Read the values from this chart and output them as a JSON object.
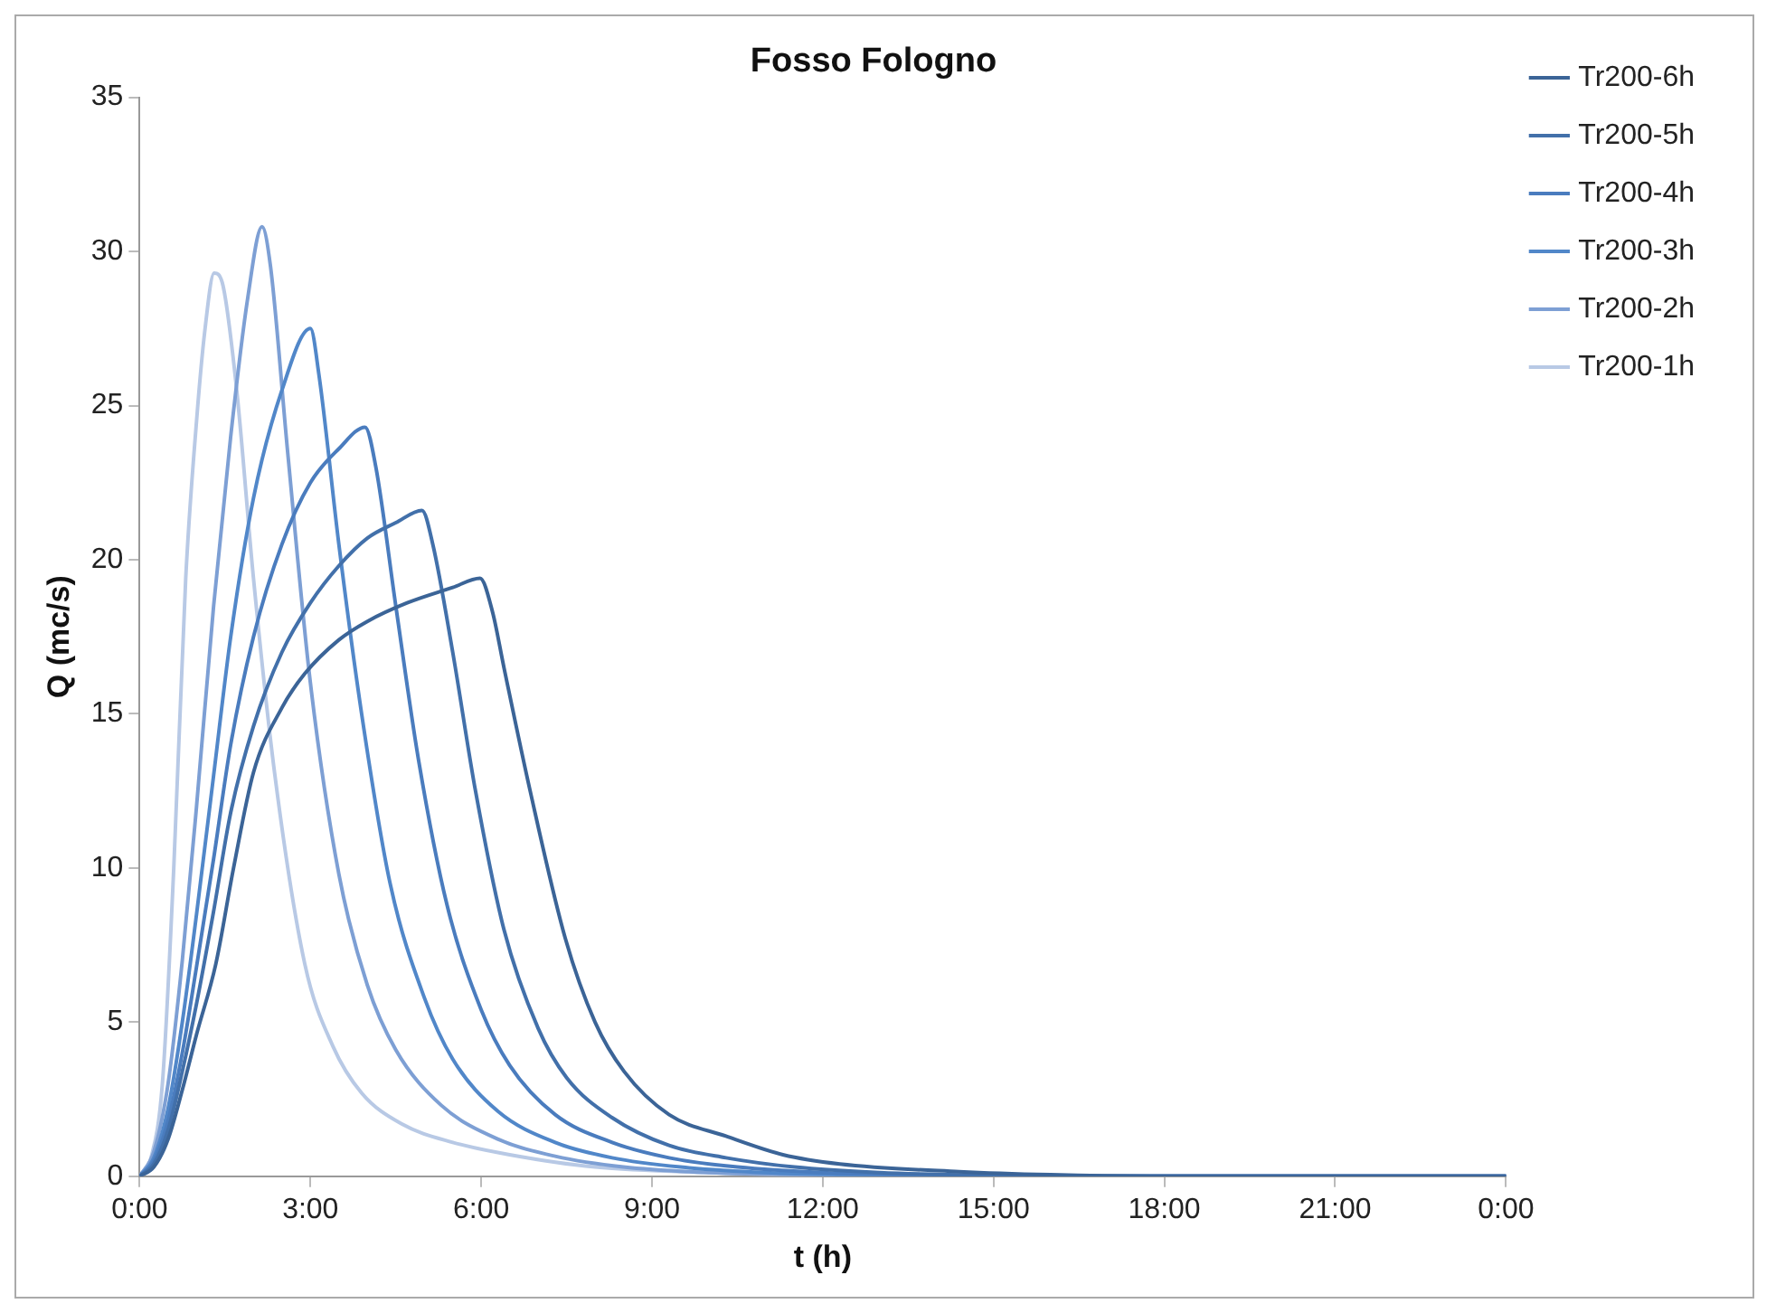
{
  "chart_data": {
    "type": "line",
    "title": "Fosso Fologno",
    "xlabel": "t (h)",
    "ylabel": "Q (mc/s)",
    "xlim": [
      0,
      24
    ],
    "xticks": [
      {
        "value": 0,
        "label": "0:00"
      },
      {
        "value": 3,
        "label": "3:00"
      },
      {
        "value": 6,
        "label": "6:00"
      },
      {
        "value": 9,
        "label": "9:00"
      },
      {
        "value": 12,
        "label": "12:00"
      },
      {
        "value": 15,
        "label": "15:00"
      },
      {
        "value": 18,
        "label": "18:00"
      },
      {
        "value": 21,
        "label": "21:00"
      },
      {
        "value": 24,
        "label": "0:00"
      }
    ],
    "ylim": [
      0,
      35
    ],
    "yticks": [
      0,
      5,
      10,
      15,
      20,
      25,
      30,
      35
    ],
    "grid": false,
    "legend": "top right",
    "marker": "none",
    "line_style": "solid",
    "series": [
      {
        "name": "Tr200-6h",
        "color": "#3b6497",
        "x": [
          0,
          0.25,
          0.5,
          0.75,
          1,
          1.34,
          1.65,
          2,
          2.5,
          2.9,
          3.5,
          4,
          4.7,
          5.5,
          5.98,
          6.2,
          6.4,
          6.86,
          7.48,
          8,
          8.51,
          9.3,
          10.3,
          11.3,
          12.3,
          14.4,
          16,
          18,
          24
        ],
        "values": [
          0,
          0.3,
          1.2,
          2.8,
          4.6,
          6.9,
          10,
          13.1,
          15.2,
          16.3,
          17.4,
          18,
          18.6,
          19.1,
          19.4,
          18.3,
          16.5,
          12.5,
          7.7,
          5,
          3.4,
          2,
          1.3,
          0.7,
          0.4,
          0.15,
          0.05,
          0,
          0
        ]
      },
      {
        "name": "Tr200-5h",
        "color": "#4270aa",
        "x": [
          0,
          0.25,
          0.5,
          0.75,
          1,
          1.3,
          1.6,
          2,
          2.5,
          3,
          3.5,
          4,
          4.5,
          4.96,
          5.15,
          5.5,
          5.9,
          6.4,
          7,
          7.5,
          8.3,
          9.3,
          10.3,
          11.5,
          13,
          15,
          17,
          24
        ],
        "values": [
          0,
          0.4,
          1.5,
          3.4,
          5.6,
          8.6,
          11.8,
          14.6,
          17,
          18.6,
          19.8,
          20.7,
          21.2,
          21.6,
          20.5,
          17,
          12.5,
          8,
          4.8,
          3.2,
          1.9,
          1,
          0.6,
          0.3,
          0.12,
          0.03,
          0,
          0
        ]
      },
      {
        "name": "Tr200-4h",
        "color": "#4a7cbe",
        "x": [
          0,
          0.25,
          0.5,
          0.75,
          1,
          1.3,
          1.6,
          2,
          2.5,
          3,
          3.5,
          3.96,
          4.15,
          4.5,
          4.9,
          5.4,
          6,
          6.5,
          7.3,
          8.3,
          9.3,
          10.5,
          12,
          14,
          16,
          24
        ],
        "values": [
          0,
          0.5,
          1.8,
          4,
          6.8,
          10.3,
          14,
          17.5,
          20.5,
          22.5,
          23.6,
          24.3,
          23,
          18.5,
          13.5,
          8.8,
          5.4,
          3.6,
          2,
          1.1,
          0.6,
          0.3,
          0.12,
          0.03,
          0,
          0
        ]
      },
      {
        "name": "Tr200-3h",
        "color": "#5187c9",
        "x": [
          0,
          0.25,
          0.5,
          0.75,
          1,
          1.3,
          1.6,
          2,
          2.5,
          3,
          3.15,
          3.5,
          3.9,
          4.4,
          5,
          5.5,
          6.3,
          7.3,
          8.3,
          9.5,
          11,
          13,
          15,
          24
        ],
        "values": [
          0,
          0.6,
          2.2,
          5,
          8.5,
          13,
          17.5,
          22,
          25.5,
          27.5,
          26,
          20.5,
          15,
          9.5,
          5.8,
          3.8,
          2.1,
          1.1,
          0.6,
          0.3,
          0.12,
          0.03,
          0,
          0
        ]
      },
      {
        "name": "Tr200-2h",
        "color": "#7d9fd4",
        "x": [
          0,
          0.25,
          0.5,
          0.75,
          1,
          1.3,
          1.6,
          1.9,
          2.15,
          2.3,
          2.6,
          3,
          3.5,
          4,
          4.5,
          5.3,
          6.3,
          7.3,
          8.5,
          10,
          12,
          14,
          24
        ],
        "values": [
          0,
          0.8,
          3,
          7,
          12,
          18.5,
          24,
          28.5,
          30.8,
          29.5,
          23.5,
          16,
          9.8,
          6.2,
          4.1,
          2.3,
          1.2,
          0.65,
          0.3,
          0.12,
          0.04,
          0,
          0
        ]
      },
      {
        "name": "Tr200-1h",
        "color": "#b8c9e5",
        "x": [
          0,
          0.2,
          0.4,
          0.6,
          0.81,
          1,
          1.15,
          1.31,
          1.45,
          1.7,
          2,
          2.37,
          2.9,
          3.4,
          3.9,
          4.6,
          5.5,
          6.5,
          8,
          10,
          12,
          14,
          24
        ],
        "values": [
          0,
          0.6,
          3,
          10,
          19.4,
          24.5,
          27.5,
          29.3,
          29,
          25.6,
          19.4,
          13.1,
          6.9,
          4.2,
          2.7,
          1.7,
          1.1,
          0.7,
          0.3,
          0.12,
          0.04,
          0,
          0
        ]
      }
    ]
  }
}
